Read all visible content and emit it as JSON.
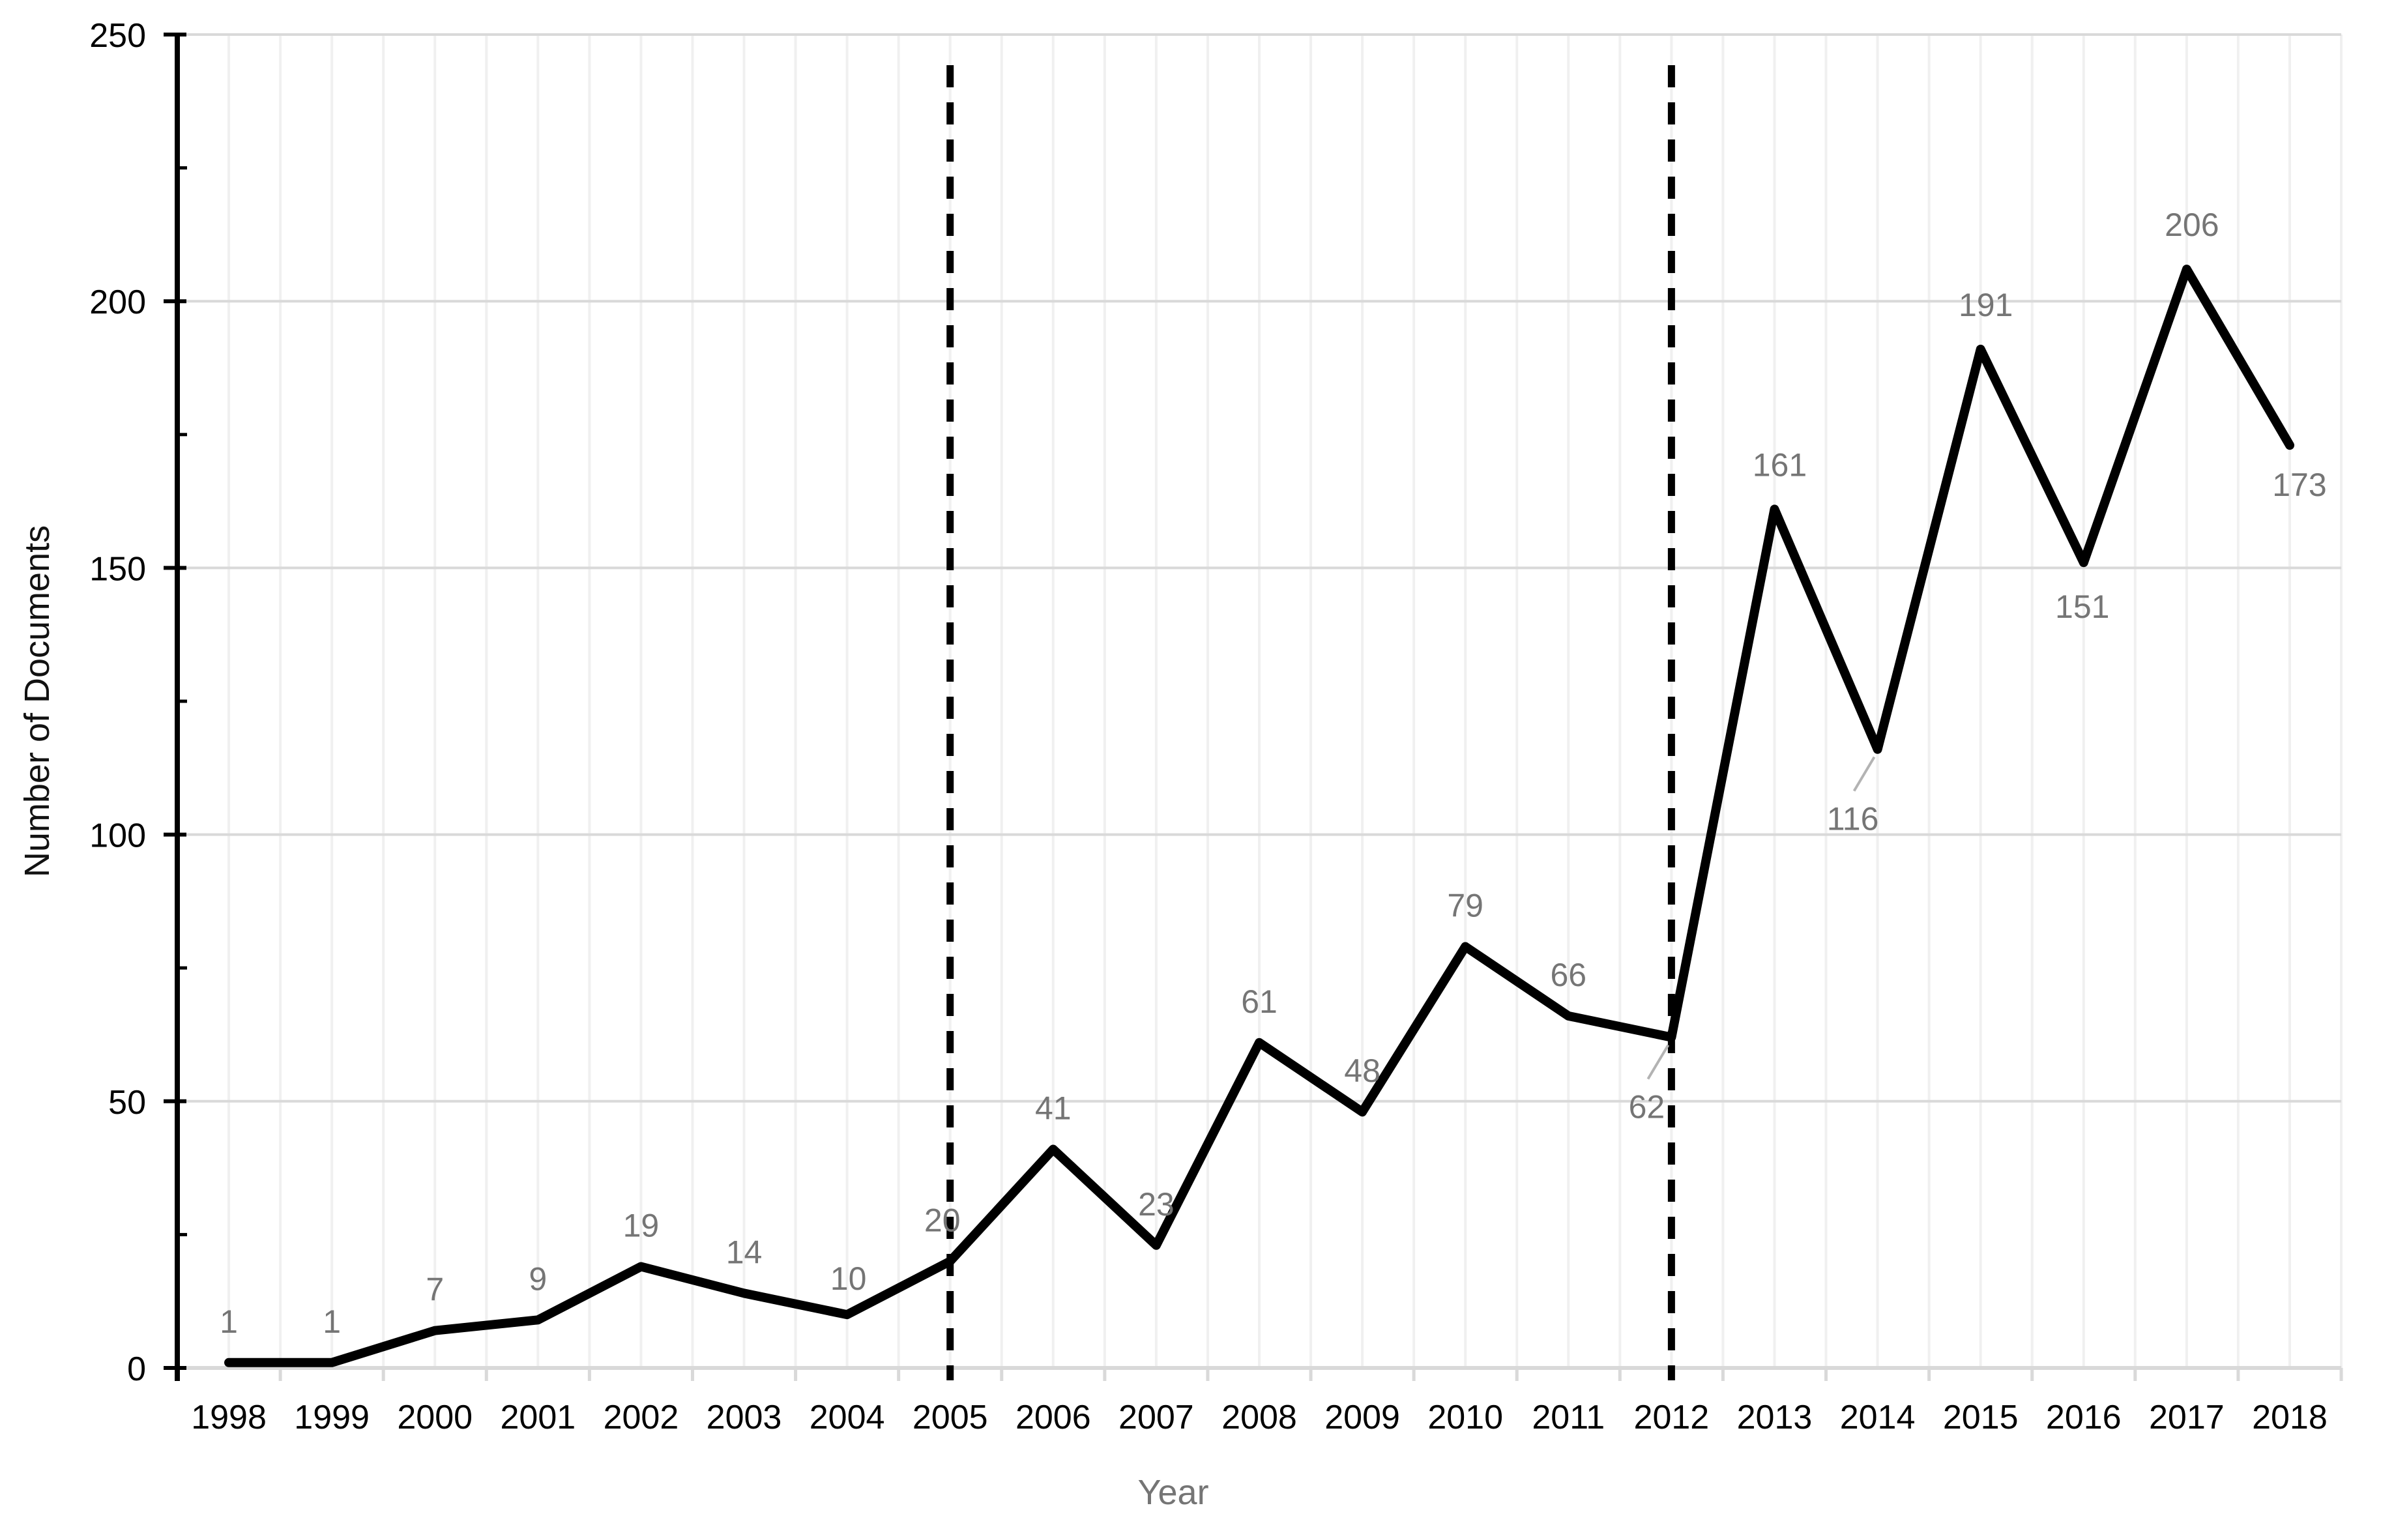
{
  "chart_data": {
    "type": "line",
    "title": "",
    "xlabel": "Year",
    "ylabel": "Number of Documents",
    "categories": [
      "1998",
      "1999",
      "2000",
      "2001",
      "2002",
      "2003",
      "2004",
      "2005",
      "2006",
      "2007",
      "2008",
      "2009",
      "2010",
      "2011",
      "2012",
      "2013",
      "2014",
      "2015",
      "2016",
      "2017",
      "2018"
    ],
    "values": [
      1,
      1,
      7,
      9,
      19,
      14,
      10,
      20,
      41,
      23,
      61,
      48,
      79,
      66,
      62,
      161,
      116,
      191,
      151,
      206,
      173
    ],
    "ylim": [
      0,
      250
    ],
    "y_tick_labels": [
      "0",
      "50",
      "100",
      "150",
      "200",
      "250"
    ],
    "y_major_tick_step": 50,
    "y_minor_tick_step": 25,
    "grid": {
      "horizontal_major": true,
      "vertical_minor": true,
      "legend": "none"
    },
    "reference_lines": [
      {
        "at_category": "2005",
        "style": "dashed"
      },
      {
        "at_category": "2012",
        "style": "dashed"
      }
    ],
    "data_labels": {
      "default_position": "above",
      "overrides": {
        "2004": "above-tight",
        "2005": "above-left",
        "2013": "above-right",
        "2015": "above-right",
        "2017": "above-right",
        "2012": "below-left-leader",
        "2014": "below-left-leader",
        "2016": "below",
        "2018": "below-right"
      },
      "leader_line_categories": [
        "2012",
        "2014"
      ]
    },
    "colors": {
      "line": "#000000",
      "data_label": "#757575",
      "tick_label": "#000000",
      "grid_major": "#d9d9d9",
      "grid_minor": "#f0f0f0",
      "x_axis": "#d9d9d9",
      "y_axis": "#000000",
      "reference_line": "#000000",
      "leader_line": "#b3b3b3",
      "background": "#ffffff"
    }
  }
}
